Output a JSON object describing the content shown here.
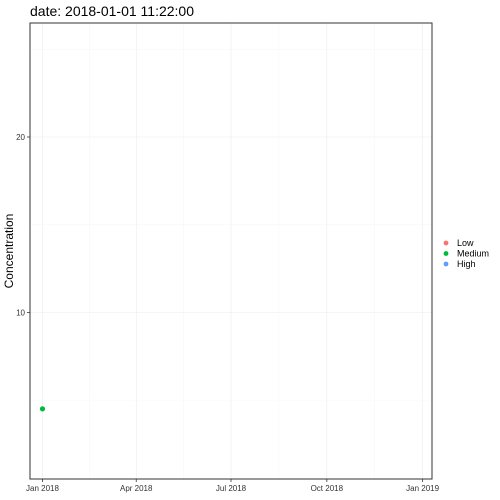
{
  "chart_data": {
    "type": "scatter",
    "title": "date: 2018-01-01 11:22:00",
    "xlabel": "",
    "ylabel": "Concentration",
    "x_axis_type": "date",
    "xlim": [
      "2017-12-20",
      "2019-01-10"
    ],
    "ylim": [
      0.5,
      26.5
    ],
    "x_ticks": [
      {
        "date": "2018-01-01",
        "label": "Jan 2018"
      },
      {
        "date": "2018-04-01",
        "label": "Apr 2018"
      },
      {
        "date": "2018-07-01",
        "label": "Jul 2018"
      },
      {
        "date": "2018-10-01",
        "label": "Oct 2018"
      },
      {
        "date": "2019-01-01",
        "label": "Jan 2019"
      }
    ],
    "y_ticks": [
      10,
      20
    ],
    "grid": true,
    "legend_position": "right",
    "legend": [
      {
        "label": "Low",
        "color": "#F8766D"
      },
      {
        "label": "Medium",
        "color": "#00BA38"
      },
      {
        "label": "High",
        "color": "#619CFF"
      }
    ],
    "points": [
      {
        "x": "2018-01-01",
        "y": 4.5,
        "category": "Medium"
      }
    ]
  }
}
